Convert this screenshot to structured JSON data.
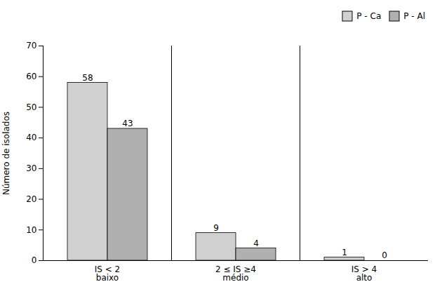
{
  "chart_data": {
    "type": "bar",
    "categories": [
      "IS < 2\nbaixo",
      "2 ≤ IS ≥4\nmédio",
      "IS > 4\nalto"
    ],
    "series": [
      {
        "name": "P - Ca",
        "color": "#d0d0d0",
        "values": [
          58,
          9,
          1
        ]
      },
      {
        "name": "P - Al",
        "color": "#b0b0b0",
        "values": [
          43,
          4,
          0
        ]
      }
    ],
    "ylabel": "Número de isolados",
    "ylim": [
      0,
      70
    ],
    "yticks": [
      0,
      10,
      20,
      30,
      40,
      50,
      60,
      70
    ],
    "data_labels": true,
    "legend": "upper right",
    "grid": false
  }
}
